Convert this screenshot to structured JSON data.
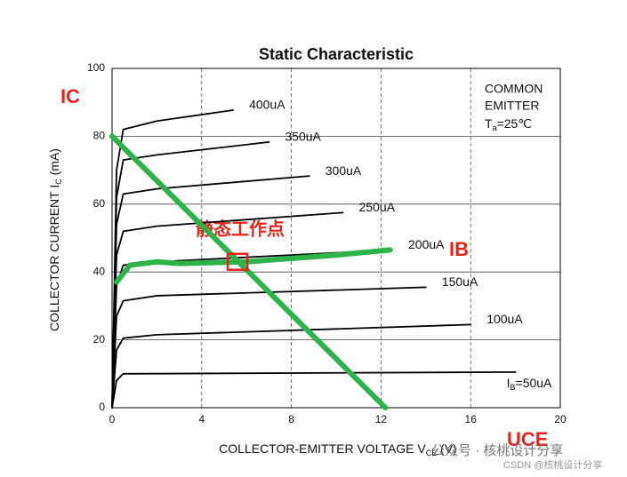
{
  "chart_data": {
    "type": "line",
    "title": "Static Characteristic",
    "xlabel": [
      "COLLECTOR-EMITTER VOLTAGE   V",
      "CE",
      "  (V)"
    ],
    "ylabel": [
      "COLLECTOR CURRENT   I",
      "C",
      "  (mA)"
    ],
    "note": {
      "lines": [
        "COMMON",
        "EMITTER"
      ],
      "temp": [
        "T",
        "a",
        "=25℃"
      ]
    },
    "xlim": [
      0,
      20
    ],
    "xticks": [
      0,
      4,
      8,
      12,
      16,
      20
    ],
    "ylim": [
      0,
      100
    ],
    "yticks": [
      0,
      20,
      40,
      60,
      80,
      100
    ],
    "grid": true,
    "color": "#000000",
    "ib_label_prefix": [
      "I",
      "B",
      "="
    ],
    "series": [
      {
        "name": "50uA",
        "x": [
          0,
          0.2,
          0.5,
          18
        ],
        "values": [
          0,
          8,
          10,
          10.5
        ]
      },
      {
        "name": "100uA",
        "x": [
          0,
          0.2,
          0.5,
          2,
          16
        ],
        "values": [
          0,
          17,
          20.5,
          21.5,
          24.5
        ]
      },
      {
        "name": "150uA",
        "x": [
          0,
          0.2,
          0.5,
          2,
          14
        ],
        "values": [
          0,
          27,
          31.5,
          33,
          35.5
        ]
      },
      {
        "name": "200uA",
        "x": [
          0,
          0.2,
          0.5,
          2,
          12.5
        ],
        "values": [
          0,
          36,
          42,
          43,
          46.5
        ]
      },
      {
        "name": "250uA",
        "x": [
          0,
          0.2,
          0.5,
          2,
          10.3
        ],
        "values": [
          0,
          45,
          52,
          53.5,
          57.5
        ]
      },
      {
        "name": "300uA",
        "x": [
          0,
          0.2,
          0.5,
          2,
          8.8
        ],
        "values": [
          0,
          54,
          63,
          64.5,
          68.3
        ]
      },
      {
        "name": "350uA",
        "x": [
          0,
          0.2,
          0.5,
          2,
          7
        ],
        "values": [
          0,
          62,
          73,
          74.5,
          78.3
        ]
      },
      {
        "name": "400uA",
        "x": [
          0,
          0.2,
          0.5,
          2,
          5.4
        ],
        "values": [
          0,
          70,
          82,
          84.5,
          87.7
        ]
      }
    ],
    "overlays": {
      "color": "#2db34a",
      "mark_color": "#e8231b",
      "load_line": {
        "x": [
          0,
          12.2
        ],
        "values": [
          80,
          0
        ]
      },
      "ib_trace": {
        "x": [
          0.2,
          0.8,
          2,
          3,
          6,
          10,
          12.4
        ],
        "values": [
          37,
          42,
          43,
          42.5,
          43,
          45,
          46.5
        ]
      },
      "q_point": {
        "x": 5.6,
        "y": 43
      }
    },
    "annotations": {
      "ic": "IC",
      "ib": "IB",
      "uce": "UCE",
      "q_label": "静态工作点"
    },
    "watermark": [
      "公众号 · 核桃设计分享",
      "CSDN @核桃设计分享"
    ]
  }
}
